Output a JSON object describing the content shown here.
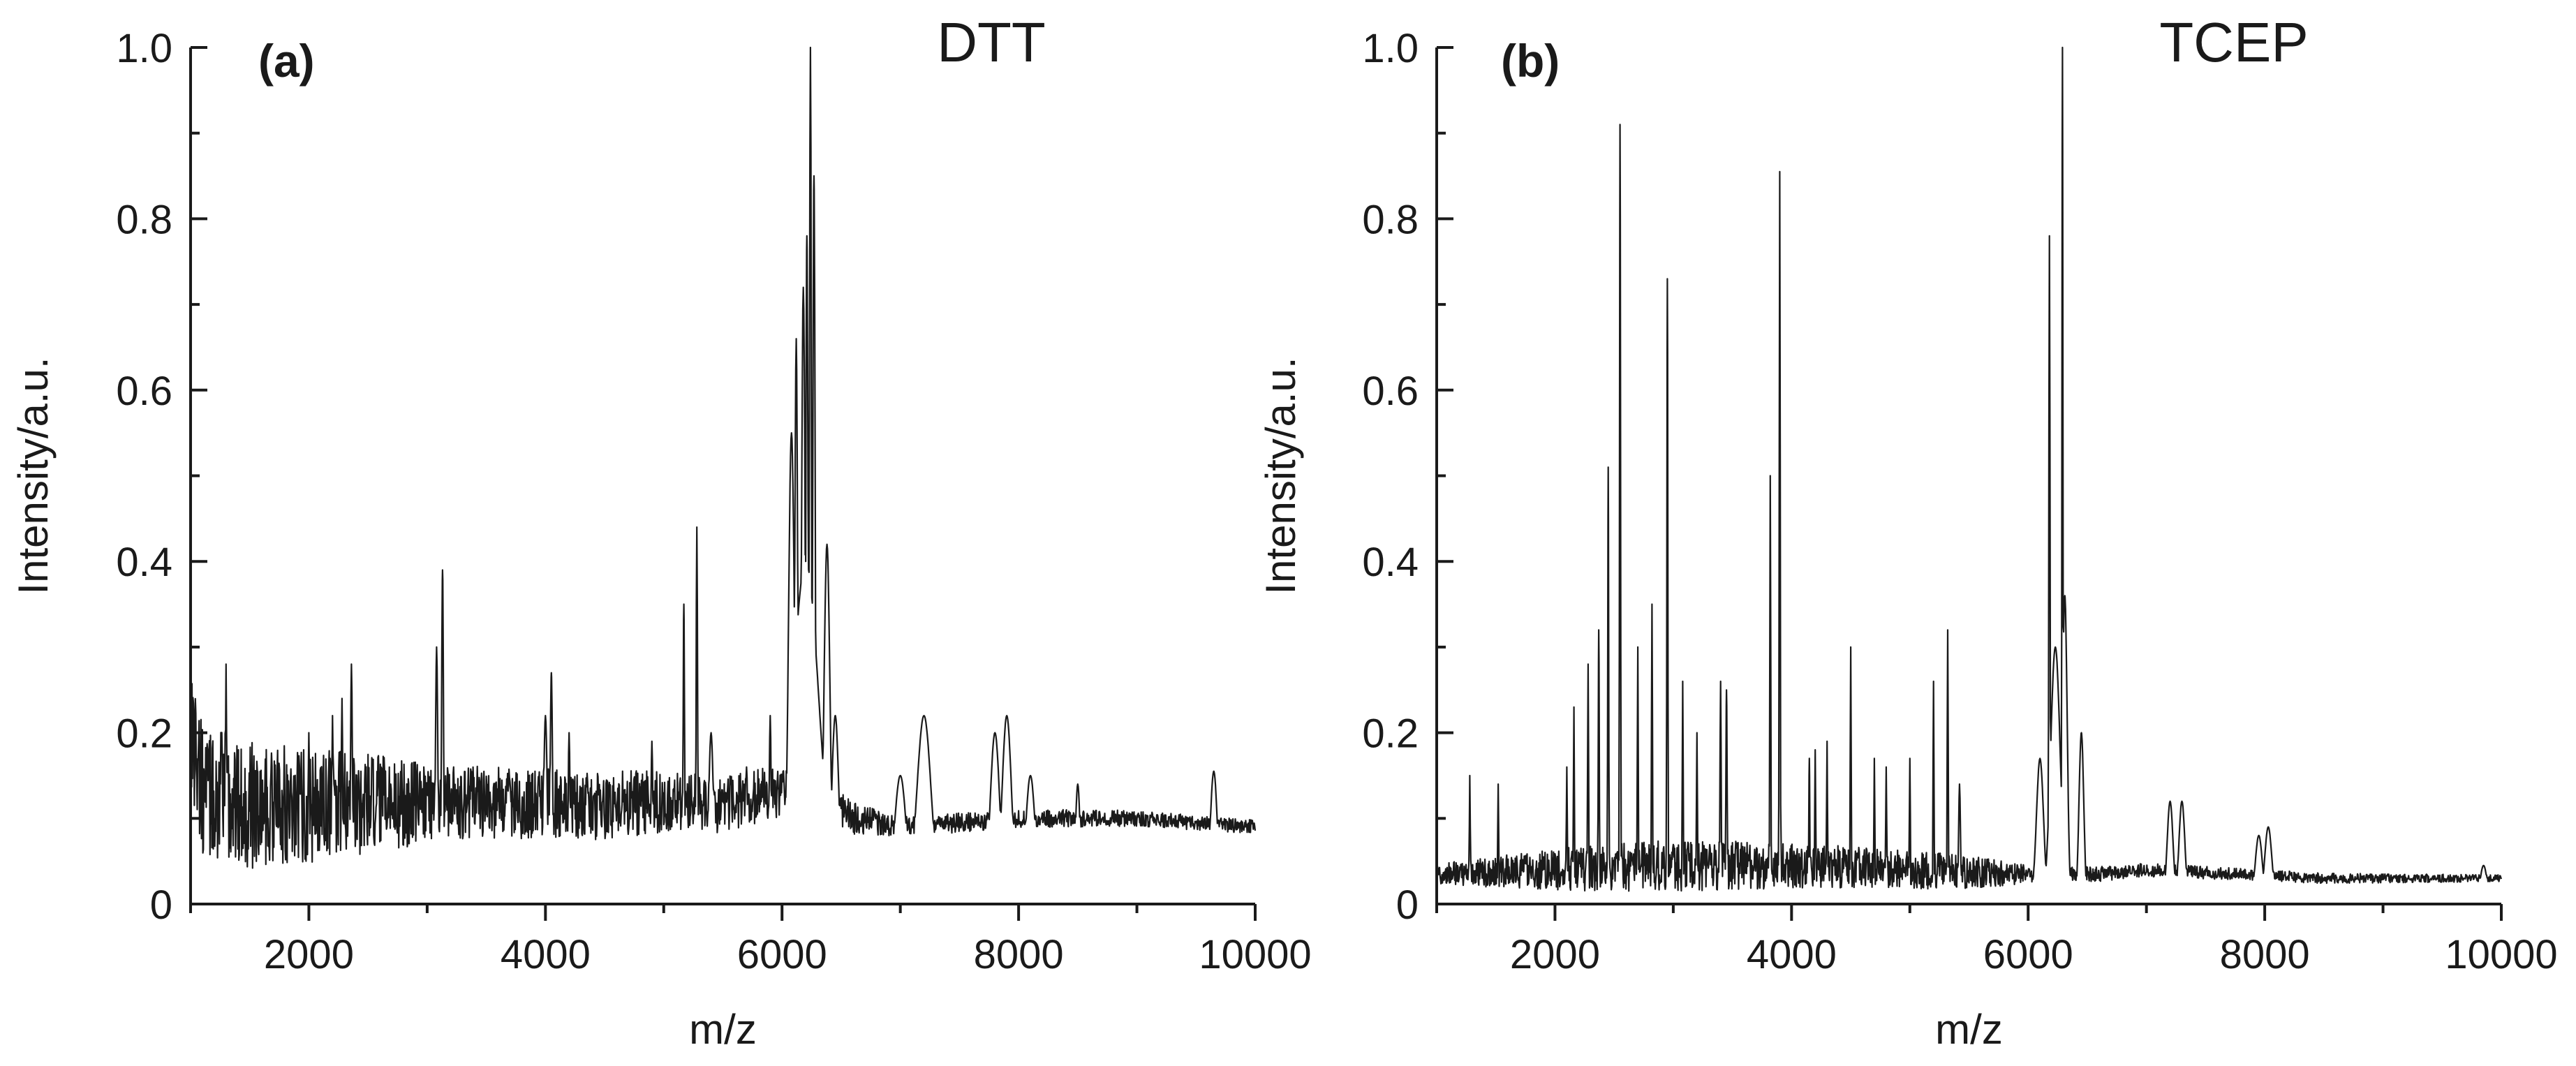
{
  "chart_data": [
    {
      "type": "line",
      "panel_label": "(a)",
      "title": "DTT",
      "xlabel": "m/z",
      "ylabel": "Intensity/a.u.",
      "xlim": [
        1000,
        10000
      ],
      "ylim": [
        0,
        1.0
      ],
      "xticks": [
        2000,
        4000,
        6000,
        8000,
        10000
      ],
      "xtick_labels": [
        "2000",
        "4000",
        "6000",
        "8000",
        "10000"
      ],
      "yticks": [
        0,
        0.2,
        0.4,
        0.6,
        0.8,
        1.0
      ],
      "ytick_labels": [
        "0",
        "0.2",
        "0.4",
        "0.6",
        "0.8",
        "1.0"
      ],
      "grid": false,
      "baseline": [
        [
          1000,
          0.22
        ],
        [
          1100,
          0.13
        ],
        [
          1500,
          0.115
        ],
        [
          2500,
          0.115
        ],
        [
          3000,
          0.12
        ],
        [
          3500,
          0.12
        ],
        [
          4500,
          0.115
        ],
        [
          5000,
          0.12
        ],
        [
          5500,
          0.115
        ],
        [
          5900,
          0.13
        ],
        [
          6000,
          0.13
        ],
        [
          6400,
          0.12
        ],
        [
          6600,
          0.1
        ],
        [
          7000,
          0.09
        ],
        [
          8000,
          0.1
        ],
        [
          9000,
          0.1
        ],
        [
          10000,
          0.09
        ]
      ],
      "noise": [
        [
          1000,
          0.08
        ],
        [
          1800,
          0.07
        ],
        [
          2500,
          0.06
        ],
        [
          3100,
          0.045
        ],
        [
          4500,
          0.04
        ],
        [
          5200,
          0.035
        ],
        [
          6000,
          0.03
        ],
        [
          6500,
          0.02
        ],
        [
          7000,
          0.012
        ],
        [
          8500,
          0.01
        ],
        [
          10000,
          0.008
        ]
      ],
      "peaks": [
        {
          "x": 1300,
          "y": 0.28,
          "w": 5
        },
        {
          "x": 2000,
          "y": 0.2,
          "w": 6
        },
        {
          "x": 2200,
          "y": 0.22,
          "w": 6
        },
        {
          "x": 2280,
          "y": 0.24,
          "w": 6
        },
        {
          "x": 2360,
          "y": 0.28,
          "w": 8
        },
        {
          "x": 3080,
          "y": 0.3,
          "w": 10
        },
        {
          "x": 3130,
          "y": 0.39,
          "w": 8
        },
        {
          "x": 4000,
          "y": 0.22,
          "w": 15
        },
        {
          "x": 4050,
          "y": 0.27,
          "w": 10
        },
        {
          "x": 4200,
          "y": 0.2,
          "w": 8
        },
        {
          "x": 4900,
          "y": 0.19,
          "w": 8
        },
        {
          "x": 5170,
          "y": 0.35,
          "w": 6
        },
        {
          "x": 5280,
          "y": 0.44,
          "w": 6
        },
        {
          "x": 5400,
          "y": 0.2,
          "w": 20
        },
        {
          "x": 5700,
          "y": 0.16,
          "w": 10
        },
        {
          "x": 5900,
          "y": 0.22,
          "w": 8
        },
        {
          "x": 6080,
          "y": 0.55,
          "w": 25
        },
        {
          "x": 6120,
          "y": 0.66,
          "w": 12
        },
        {
          "x": 6180,
          "y": 0.72,
          "w": 15
        },
        {
          "x": 6210,
          "y": 0.78,
          "w": 10
        },
        {
          "x": 6240,
          "y": 1.0,
          "w": 8
        },
        {
          "x": 6270,
          "y": 0.85,
          "w": 10
        },
        {
          "x": 6200,
          "y": 0.4,
          "w": 110
        },
        {
          "x": 6380,
          "y": 0.42,
          "w": 25
        },
        {
          "x": 6450,
          "y": 0.22,
          "w": 30
        },
        {
          "x": 7200,
          "y": 0.22,
          "w": 60
        },
        {
          "x": 7000,
          "y": 0.15,
          "w": 50
        },
        {
          "x": 7800,
          "y": 0.2,
          "w": 40
        },
        {
          "x": 7900,
          "y": 0.22,
          "w": 40
        },
        {
          "x": 8100,
          "y": 0.15,
          "w": 40
        },
        {
          "x": 8500,
          "y": 0.14,
          "w": 20
        },
        {
          "x": 9650,
          "y": 0.155,
          "w": 30
        }
      ]
    },
    {
      "type": "line",
      "panel_label": "(b)",
      "title": "TCEP",
      "xlabel": "m/z",
      "ylabel": "Intensity/a.u.",
      "xlim": [
        1000,
        10000
      ],
      "ylim": [
        0,
        1.0
      ],
      "xticks": [
        2000,
        4000,
        6000,
        8000,
        10000
      ],
      "xtick_labels": [
        "2000",
        "4000",
        "6000",
        "8000",
        "10000"
      ],
      "yticks": [
        0,
        0.2,
        0.4,
        0.6,
        0.8,
        1.0
      ],
      "ytick_labels": [
        "0",
        "0.2",
        "0.4",
        "0.6",
        "0.8",
        "1.0"
      ],
      "grid": false,
      "baseline": [
        [
          1000,
          0.035
        ],
        [
          2000,
          0.04
        ],
        [
          3000,
          0.045
        ],
        [
          4000,
          0.045
        ],
        [
          5000,
          0.04
        ],
        [
          5900,
          0.035
        ],
        [
          6600,
          0.035
        ],
        [
          7000,
          0.04
        ],
        [
          8500,
          0.03
        ],
        [
          10000,
          0.03
        ]
      ],
      "noise": [
        [
          1000,
          0.012
        ],
        [
          2000,
          0.025
        ],
        [
          3000,
          0.03
        ],
        [
          4500,
          0.025
        ],
        [
          5500,
          0.02
        ],
        [
          6000,
          0.01
        ],
        [
          7000,
          0.008
        ],
        [
          10000,
          0.004
        ]
      ],
      "peaks": [
        {
          "x": 1280,
          "y": 0.15,
          "w": 4
        },
        {
          "x": 1520,
          "y": 0.14,
          "w": 4
        },
        {
          "x": 2100,
          "y": 0.16,
          "w": 4
        },
        {
          "x": 2160,
          "y": 0.23,
          "w": 4
        },
        {
          "x": 2280,
          "y": 0.28,
          "w": 4
        },
        {
          "x": 2370,
          "y": 0.32,
          "w": 4
        },
        {
          "x": 2450,
          "y": 0.51,
          "w": 4
        },
        {
          "x": 2550,
          "y": 0.91,
          "w": 4
        },
        {
          "x": 2700,
          "y": 0.3,
          "w": 4
        },
        {
          "x": 2820,
          "y": 0.35,
          "w": 4
        },
        {
          "x": 2950,
          "y": 0.73,
          "w": 4
        },
        {
          "x": 3080,
          "y": 0.26,
          "w": 4
        },
        {
          "x": 3200,
          "y": 0.2,
          "w": 4
        },
        {
          "x": 3400,
          "y": 0.26,
          "w": 5
        },
        {
          "x": 3450,
          "y": 0.25,
          "w": 5
        },
        {
          "x": 3820,
          "y": 0.5,
          "w": 4
        },
        {
          "x": 3900,
          "y": 0.855,
          "w": 4
        },
        {
          "x": 4150,
          "y": 0.17,
          "w": 4
        },
        {
          "x": 4200,
          "y": 0.18,
          "w": 4
        },
        {
          "x": 4300,
          "y": 0.19,
          "w": 4
        },
        {
          "x": 4500,
          "y": 0.3,
          "w": 4
        },
        {
          "x": 4700,
          "y": 0.17,
          "w": 4
        },
        {
          "x": 4800,
          "y": 0.16,
          "w": 4
        },
        {
          "x": 5000,
          "y": 0.17,
          "w": 4
        },
        {
          "x": 5200,
          "y": 0.26,
          "w": 4
        },
        {
          "x": 5320,
          "y": 0.32,
          "w": 4
        },
        {
          "x": 5420,
          "y": 0.14,
          "w": 8
        },
        {
          "x": 6100,
          "y": 0.17,
          "w": 30
        },
        {
          "x": 6180,
          "y": 0.78,
          "w": 5
        },
        {
          "x": 6230,
          "y": 0.3,
          "w": 40
        },
        {
          "x": 6290,
          "y": 1.0,
          "w": 4
        },
        {
          "x": 6310,
          "y": 0.36,
          "w": 20
        },
        {
          "x": 6450,
          "y": 0.2,
          "w": 20
        },
        {
          "x": 7200,
          "y": 0.12,
          "w": 25
        },
        {
          "x": 7300,
          "y": 0.12,
          "w": 25
        },
        {
          "x": 7950,
          "y": 0.08,
          "w": 30
        },
        {
          "x": 8030,
          "y": 0.09,
          "w": 30
        },
        {
          "x": 9850,
          "y": 0.045,
          "w": 30
        }
      ]
    }
  ]
}
